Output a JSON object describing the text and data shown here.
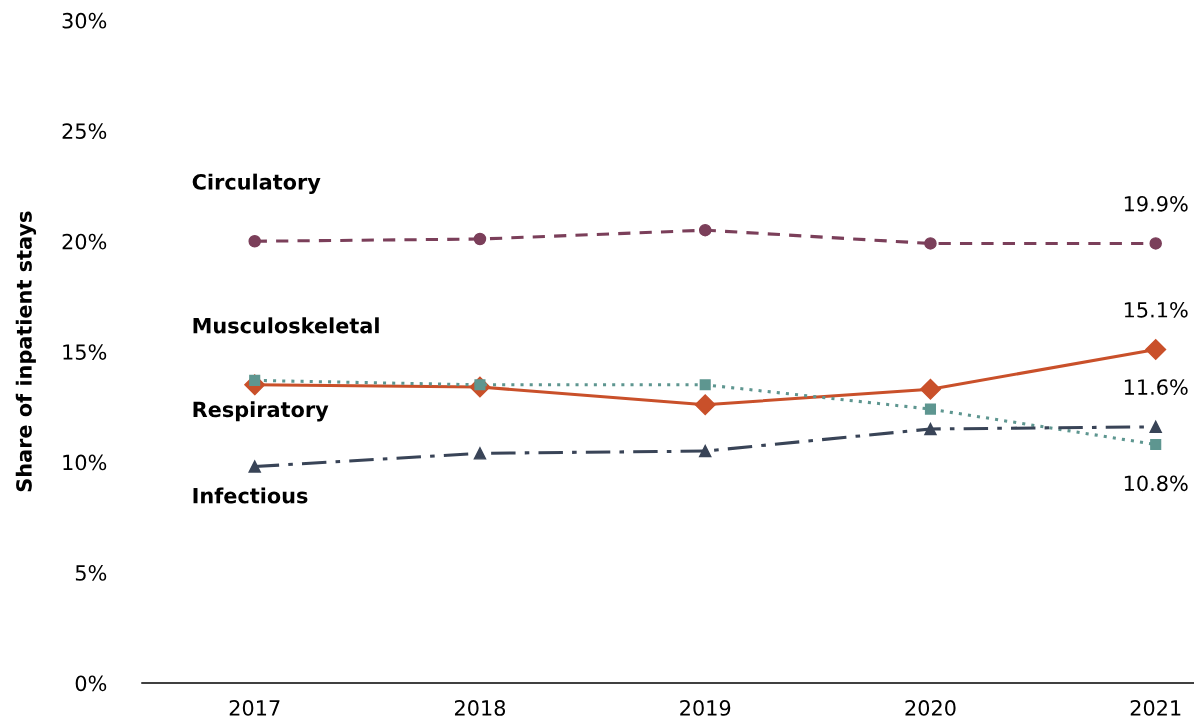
{
  "chart_data": {
    "type": "line",
    "ylabel": "Share of inpatient stays",
    "categories": [
      "2017",
      "2018",
      "2019",
      "2020",
      "2021"
    ],
    "series": [
      {
        "name": "Circulatory",
        "color": "#7b3f5a",
        "marker": "circle",
        "line_style": "dashed",
        "values": [
          20.0,
          20.1,
          20.5,
          19.9,
          19.9
        ],
        "value_labels": [
          null,
          null,
          null,
          null,
          "19.9%"
        ]
      },
      {
        "name": "Musculoskeletal",
        "color": "#c9502a",
        "marker": "diamond",
        "line_style": "solid",
        "values": [
          13.5,
          13.4,
          12.6,
          13.3,
          15.1
        ],
        "value_labels": [
          null,
          null,
          null,
          null,
          "15.1%"
        ]
      },
      {
        "name": "Respiratory",
        "color": "#5e9690",
        "marker": "square",
        "line_style": "dotted",
        "values": [
          13.7,
          13.5,
          13.5,
          12.4,
          10.8
        ],
        "value_labels": [
          null,
          null,
          null,
          null,
          "10.8%"
        ]
      },
      {
        "name": "Infectious",
        "color": "#394457",
        "marker": "triangle",
        "line_style": "dashdot",
        "values": [
          9.8,
          10.4,
          10.5,
          11.5,
          11.6
        ],
        "value_labels": [
          null,
          null,
          null,
          null,
          "11.6%"
        ]
      }
    ],
    "ylim": [
      0,
      30
    ],
    "yticks": [
      {
        "value": 0,
        "label": "0%"
      },
      {
        "value": 5,
        "label": "5%"
      },
      {
        "value": 10,
        "label": "10%"
      },
      {
        "value": 15,
        "label": "15%"
      },
      {
        "value": 20,
        "label": "20%"
      },
      {
        "value": 25,
        "label": "25%"
      },
      {
        "value": 30,
        "label": "30%"
      }
    ],
    "grid": false,
    "legend": false
  }
}
